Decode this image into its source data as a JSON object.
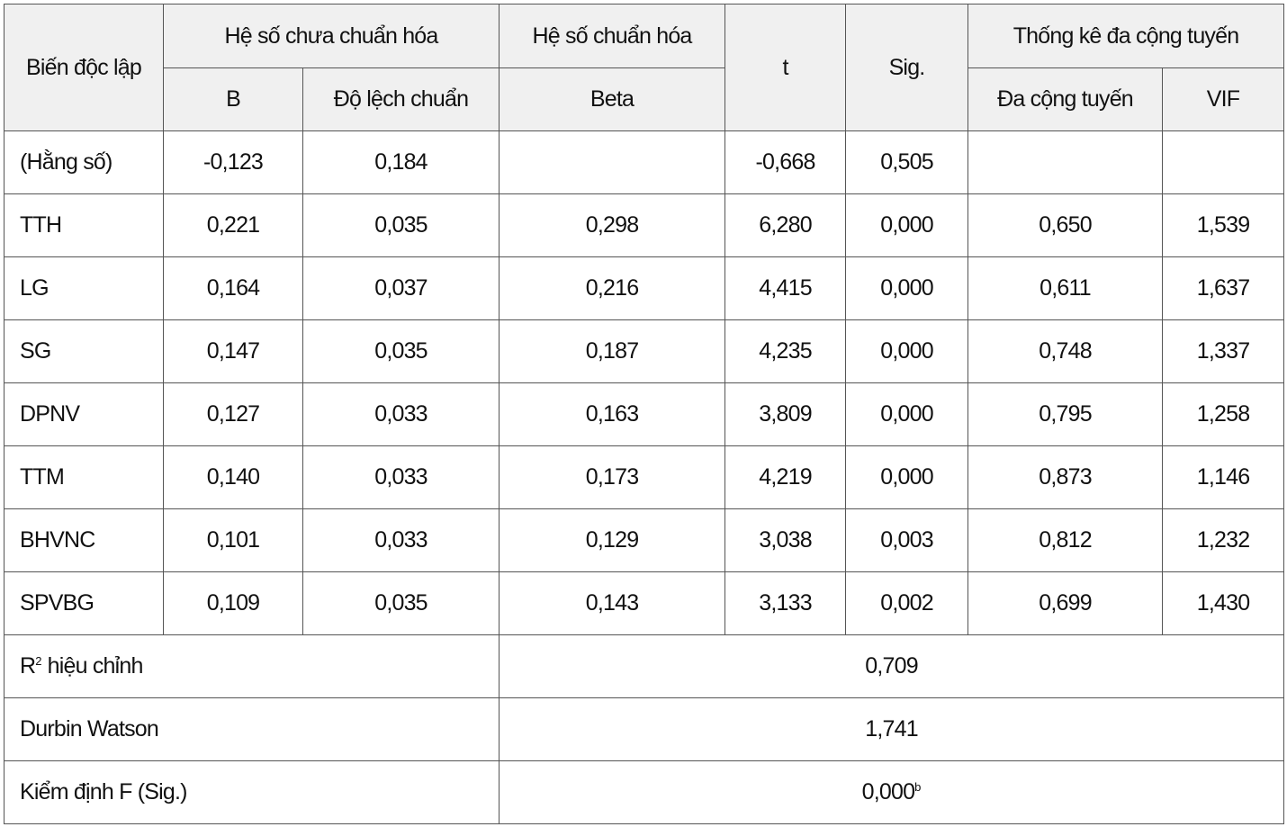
{
  "table": {
    "header": {
      "variable": "Biến độc lập",
      "unstandardized": "Hệ số chưa chuẩn hóa",
      "standardized": "Hệ số chuẩn hóa",
      "t": "t",
      "sig": "Sig.",
      "collinearity": "Thống kê đa cộng tuyến",
      "b": "B",
      "se": "Độ lệch chuẩn",
      "beta": "Beta",
      "tolerance": "Đa cộng tuyến",
      "vif": "VIF"
    },
    "rows": [
      {
        "variable": "(Hằng số)",
        "b": "-0,123",
        "se": "0,184",
        "t": "-0,668",
        "sig": "0,505"
      },
      {
        "variable": "TTH",
        "b": "0,221",
        "se": "0,035",
        "beta": "0,298",
        "t": "6,280",
        "sig": "0,000",
        "tolerance": "0,650",
        "vif": "1,539"
      },
      {
        "variable": "LG",
        "b": "0,164",
        "se": "0,037",
        "beta": "0,216",
        "t": "4,415",
        "sig": "0,000",
        "tolerance": "0,611",
        "vif": "1,637"
      },
      {
        "variable": "SG",
        "b": "0,147",
        "se": "0,035",
        "beta": "0,187",
        "t": "4,235",
        "sig": "0,000",
        "tolerance": "0,748",
        "vif": "1,337"
      },
      {
        "variable": "DPNV",
        "b": "0,127",
        "se": "0,033",
        "beta": "0,163",
        "t": "3,809",
        "sig": "0,000",
        "tolerance": "0,795",
        "vif": "1,258"
      },
      {
        "variable": "TTM",
        "b": "0,140",
        "se": "0,033",
        "beta": "0,173",
        "t": "4,219",
        "sig": "0,000",
        "tolerance": "0,873",
        "vif": "1,146"
      },
      {
        "variable": "BHVNC",
        "b": "0,101",
        "se": "0,033",
        "beta": "0,129",
        "t": "3,038",
        "sig": "0,003",
        "tolerance": "0,812",
        "vif": "1,232"
      },
      {
        "variable": "SPVBG",
        "b": "0,109",
        "se": "0,035",
        "beta": "0,143",
        "t": "3,133",
        "sig": "0,002",
        "tolerance": "0,699",
        "vif": "1,430"
      }
    ],
    "summary": [
      {
        "label": "R",
        "label_sup": "2",
        "label_rest": " hiệu chỉnh",
        "value": "0,709"
      },
      {
        "label": "Durbin Watson",
        "value": "1,741"
      },
      {
        "label": "Kiểm định F (Sig.)",
        "value": "0,000",
        "value_sup": "b"
      }
    ]
  }
}
